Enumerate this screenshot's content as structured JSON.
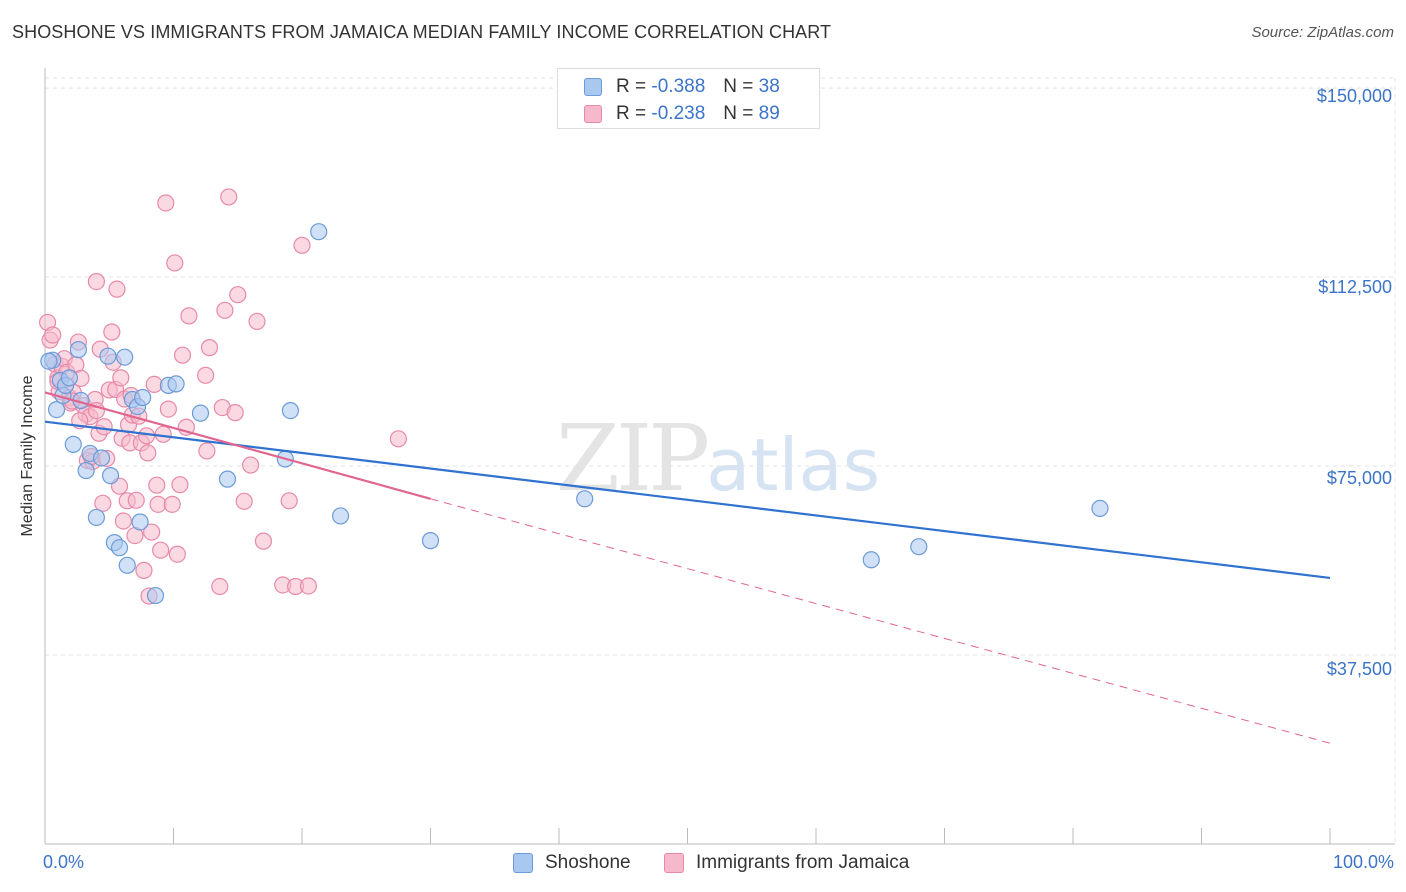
{
  "title": "SHOSHONE VS IMMIGRANTS FROM JAMAICA MEDIAN FAMILY INCOME CORRELATION CHART",
  "source": "Source: ZipAtlas.com",
  "watermark": {
    "part1": "ZIP",
    "part2": "atlas"
  },
  "colors": {
    "shoshone_fill": "#a9c8f0",
    "shoshone_stroke": "#6b9bd8",
    "shoshone_line": "#2f72d0",
    "jamaica_fill": "#f6b9cc",
    "jamaica_stroke": "#e889a8",
    "jamaica_line": "#e0658f",
    "grid": "#e3e3e3",
    "axis": "#bbbbbb",
    "tick_text": "#3b74c8"
  },
  "legend_top": [
    {
      "r_label": "R =",
      "r_value": "-0.388",
      "n_label": "N =",
      "n_value": "38"
    },
    {
      "r_label": "R =",
      "r_value": "-0.238",
      "n_label": "N =",
      "n_value": "89"
    }
  ],
  "chart_data": {
    "type": "scatter",
    "title": "SHOSHONE VS IMMIGRANTS FROM JAMAICA MEDIAN FAMILY INCOME CORRELATION CHART",
    "xlabel": "",
    "ylabel": "Median Family Income",
    "xlim": [
      0,
      100
    ],
    "ylim": [
      0,
      152000
    ],
    "x_tick_labels": [
      "0.0%",
      "100.0%"
    ],
    "y_ticks": [
      37500,
      75000,
      112500,
      150000
    ],
    "y_tick_labels": [
      "$37,500",
      "$75,000",
      "$112,500",
      "$150,000"
    ],
    "grid": true,
    "legend": "bottom-center",
    "series": [
      {
        "name": "Shoshone",
        "r": -0.388,
        "n": 38,
        "trend": {
          "x": [
            0,
            100
          ],
          "y": [
            83800,
            52800
          ],
          "style": "solid"
        },
        "points": [
          [
            0.6,
            96000
          ],
          [
            0.9,
            86200
          ],
          [
            1.2,
            92000
          ],
          [
            1.4,
            89000
          ],
          [
            1.6,
            91000
          ],
          [
            1.9,
            92500
          ],
          [
            2.2,
            79300
          ],
          [
            2.6,
            98100
          ],
          [
            2.8,
            88000
          ],
          [
            3.2,
            74100
          ],
          [
            3.5,
            77500
          ],
          [
            4.0,
            64800
          ],
          [
            4.4,
            76600
          ],
          [
            4.9,
            96800
          ],
          [
            5.1,
            73100
          ],
          [
            5.4,
            59800
          ],
          [
            5.8,
            58800
          ],
          [
            6.2,
            96600
          ],
          [
            6.4,
            55300
          ],
          [
            6.8,
            88200
          ],
          [
            7.2,
            86800
          ],
          [
            7.4,
            63900
          ],
          [
            7.6,
            88600
          ],
          [
            8.6,
            49300
          ],
          [
            9.6,
            91000
          ],
          [
            10.2,
            91300
          ],
          [
            12.1,
            85500
          ],
          [
            14.2,
            72400
          ],
          [
            18.7,
            76400
          ],
          [
            19.1,
            86000
          ],
          [
            21.3,
            121500
          ],
          [
            23.0,
            65100
          ],
          [
            30.0,
            60200
          ],
          [
            42.0,
            68500
          ],
          [
            64.3,
            56400
          ],
          [
            68.0,
            59000
          ],
          [
            82.1,
            66600
          ],
          [
            0.3,
            95800
          ]
        ]
      },
      {
        "name": "Immigrants from Jamaica",
        "r": -0.238,
        "n": 89,
        "trend": {
          "x": [
            0,
            30
          ],
          "y": [
            89600,
            68500
          ],
          "x_dashed": [
            30,
            100
          ],
          "y_dashed": [
            68500,
            20000
          ]
        },
        "points": [
          [
            0.2,
            103500
          ],
          [
            0.4,
            100000
          ],
          [
            0.6,
            101000
          ],
          [
            0.8,
            95200
          ],
          [
            1.0,
            92500
          ],
          [
            1.1,
            89800
          ],
          [
            1.3,
            94800
          ],
          [
            1.5,
            96300
          ],
          [
            1.7,
            93600
          ],
          [
            1.9,
            88600
          ],
          [
            2.0,
            87500
          ],
          [
            2.2,
            89600
          ],
          [
            2.4,
            95100
          ],
          [
            2.6,
            99600
          ],
          [
            2.8,
            92400
          ],
          [
            3.0,
            87000
          ],
          [
            3.2,
            85300
          ],
          [
            3.3,
            76100
          ],
          [
            3.5,
            84800
          ],
          [
            3.7,
            75900
          ],
          [
            3.9,
            88200
          ],
          [
            4.0,
            86000
          ],
          [
            4.2,
            81500
          ],
          [
            4.3,
            98200
          ],
          [
            4.5,
            67600
          ],
          [
            4.6,
            82800
          ],
          [
            4.8,
            76500
          ],
          [
            5.0,
            90100
          ],
          [
            5.2,
            101600
          ],
          [
            5.3,
            95600
          ],
          [
            5.5,
            90200
          ],
          [
            5.6,
            110100
          ],
          [
            5.8,
            71000
          ],
          [
            6.0,
            80500
          ],
          [
            6.1,
            64100
          ],
          [
            6.2,
            88300
          ],
          [
            6.4,
            68100
          ],
          [
            6.5,
            83200
          ],
          [
            6.6,
            79600
          ],
          [
            6.8,
            85100
          ],
          [
            7.0,
            61200
          ],
          [
            7.1,
            68200
          ],
          [
            7.3,
            84900
          ],
          [
            7.5,
            79600
          ],
          [
            7.7,
            54300
          ],
          [
            7.9,
            81000
          ],
          [
            8.0,
            77600
          ],
          [
            8.1,
            49200
          ],
          [
            8.3,
            61900
          ],
          [
            8.5,
            91200
          ],
          [
            8.7,
            71200
          ],
          [
            8.8,
            67400
          ],
          [
            9.0,
            58300
          ],
          [
            9.2,
            81300
          ],
          [
            9.4,
            127200
          ],
          [
            9.6,
            86300
          ],
          [
            9.9,
            67400
          ],
          [
            10.1,
            115300
          ],
          [
            10.3,
            57500
          ],
          [
            10.5,
            71300
          ],
          [
            10.7,
            97000
          ],
          [
            11.0,
            82700
          ],
          [
            11.2,
            104800
          ],
          [
            12.5,
            93000
          ],
          [
            12.6,
            78000
          ],
          [
            12.8,
            98500
          ],
          [
            13.6,
            51100
          ],
          [
            13.8,
            86600
          ],
          [
            14.0,
            105900
          ],
          [
            14.3,
            128400
          ],
          [
            14.8,
            85600
          ],
          [
            15.0,
            109000
          ],
          [
            15.5,
            68000
          ],
          [
            16.0,
            75200
          ],
          [
            16.5,
            103700
          ],
          [
            17.0,
            60100
          ],
          [
            18.5,
            51400
          ],
          [
            19.0,
            68100
          ],
          [
            19.5,
            51100
          ],
          [
            20.0,
            118800
          ],
          [
            20.5,
            51200
          ],
          [
            27.5,
            80400
          ],
          [
            4.0,
            111600
          ],
          [
            2.1,
            87900
          ],
          [
            1.0,
            91800
          ],
          [
            3.6,
            76900
          ],
          [
            6.7,
            89000
          ],
          [
            5.9,
            92500
          ],
          [
            2.7,
            84000
          ]
        ]
      }
    ]
  }
}
